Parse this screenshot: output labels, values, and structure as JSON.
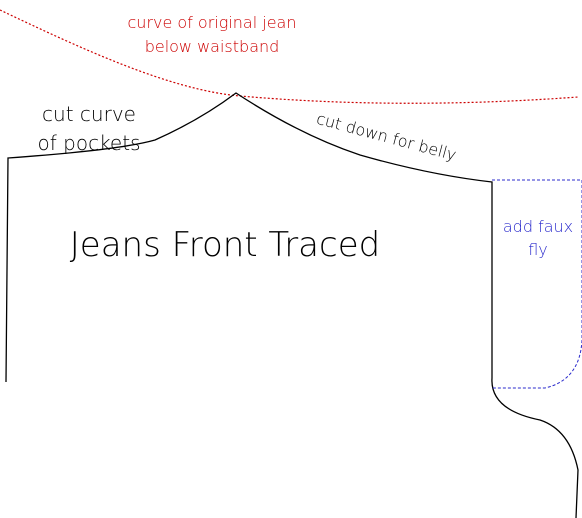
{
  "colors": {
    "outline": "#000000",
    "original_curve": "#cc0000",
    "faux_fly": "#2b2bcc"
  },
  "labels": {
    "original_curve": [
      "curve of original jean",
      "below waistband"
    ],
    "pockets": [
      "cut curve",
      "of pockets"
    ],
    "belly": "cut down for belly",
    "main_title": "Jeans Front Traced",
    "faux_fly": [
      "add faux",
      "fly"
    ]
  }
}
